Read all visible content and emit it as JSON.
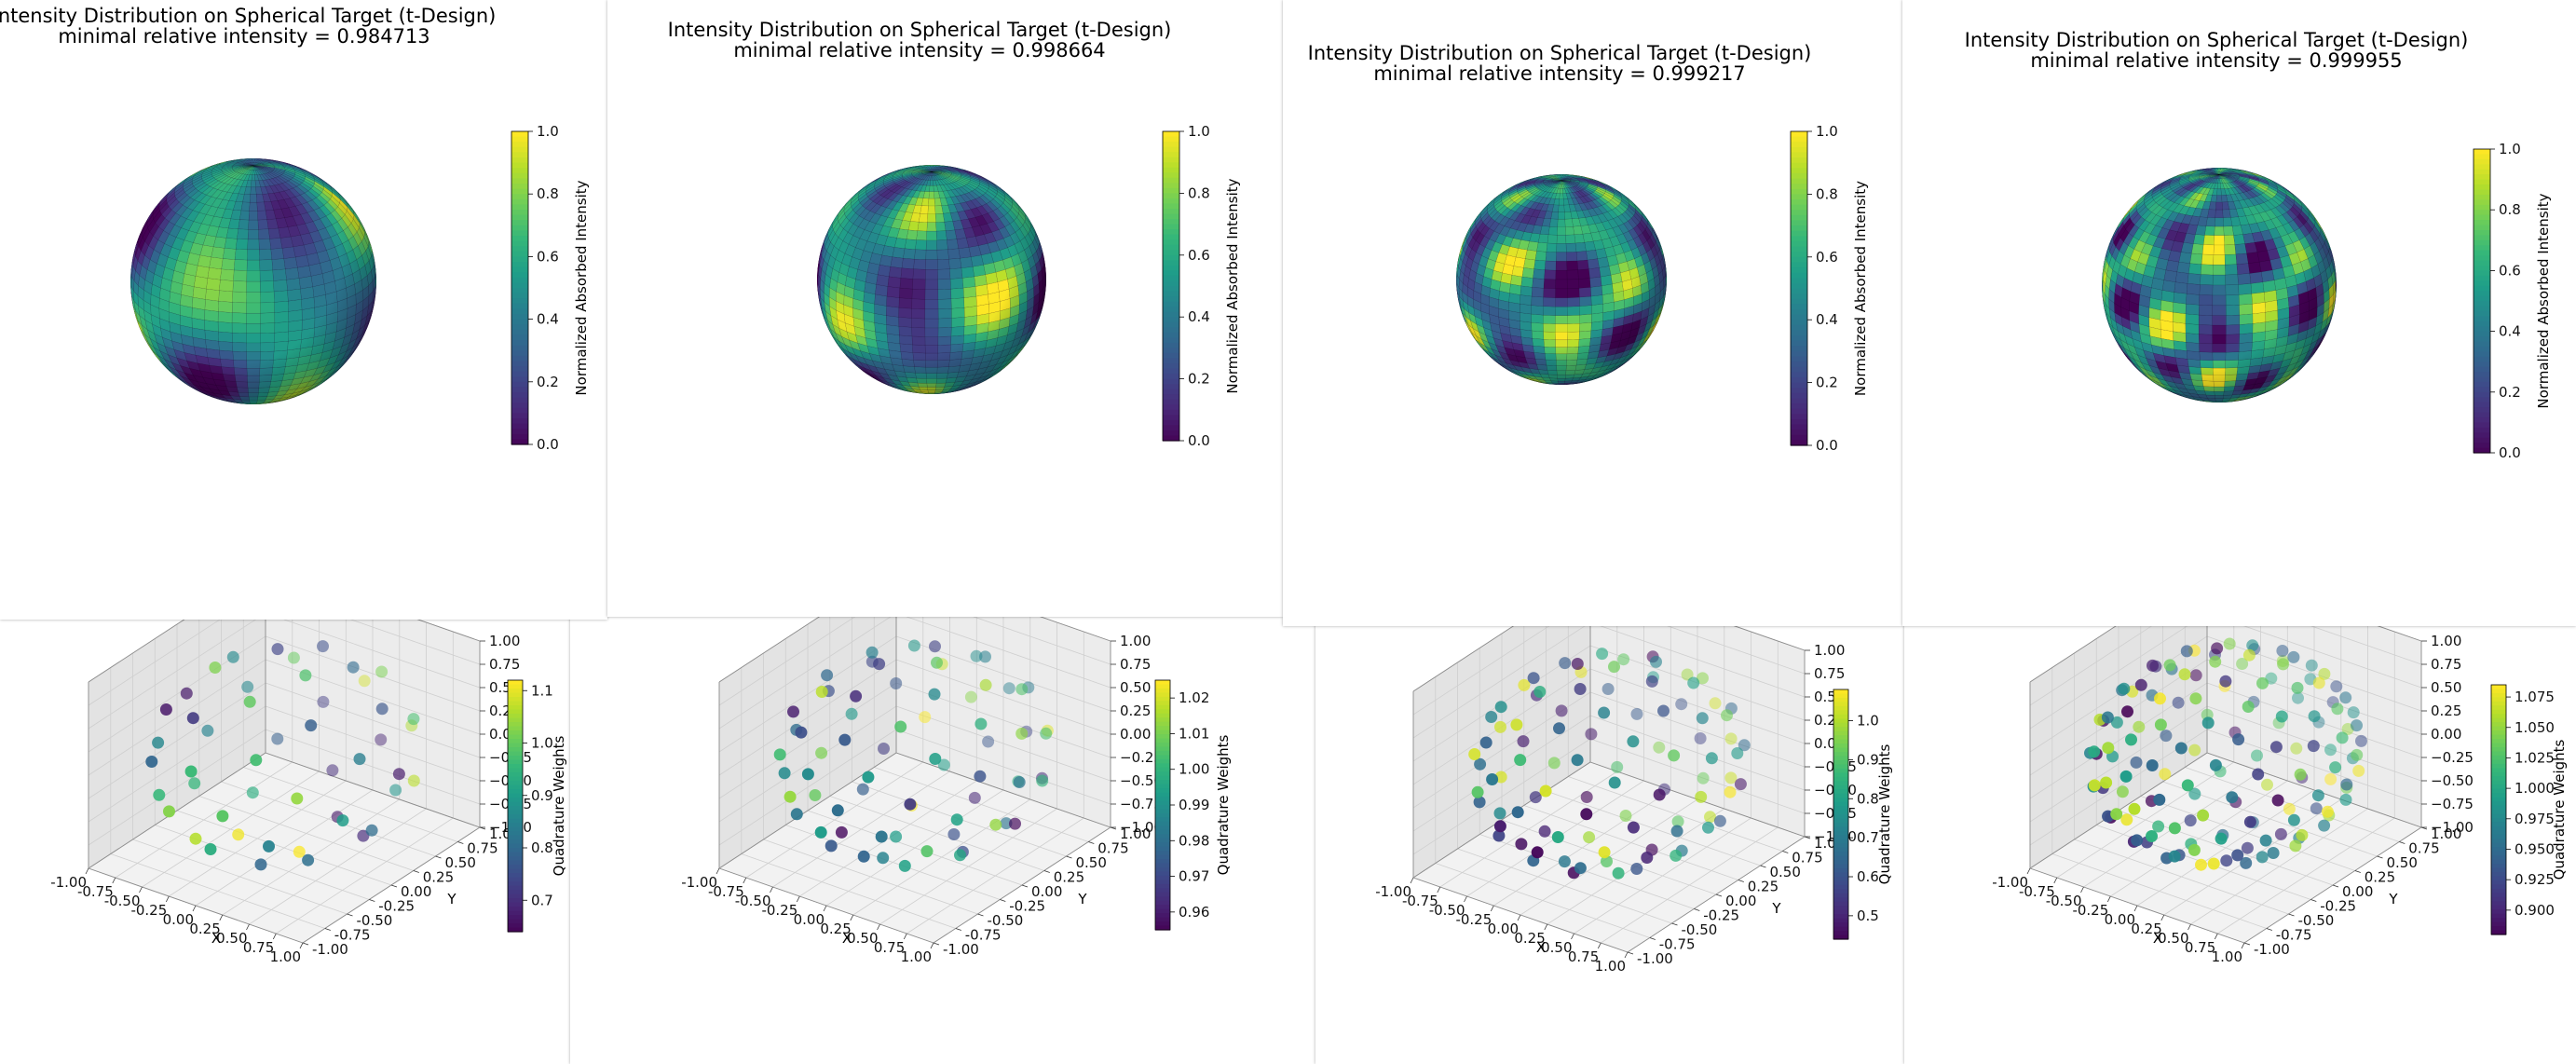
{
  "window_title": "Intensity Distribution on Spherical Target (t-Design)",
  "colors": {
    "viridis": [
      "#440154",
      "#482878",
      "#3e4989",
      "#31688e",
      "#26828e",
      "#1f9e89",
      "#35b779",
      "#6ece58",
      "#b5de2b",
      "#fde725"
    ],
    "pane_face": "#f2f2f2",
    "grid": "#cfcfcf",
    "edge": "#8c8c8c"
  },
  "intensity_plots": [
    {
      "title_line1": "Intensity Distribution on Spherical Target (t-Design)",
      "title_line2": "minimal relative intensity = 0.984713",
      "cbar_label": "Normalized Absorbed Intensity",
      "cbar_ticks": [
        "0.0",
        "0.2",
        "0.4",
        "0.6",
        "0.8",
        "1.0"
      ],
      "min_relative_intensity": 0.984713,
      "pattern": "coarse"
    },
    {
      "title_line1": "Intensity Distribution on Spherical Target (t-Design)",
      "title_line2": "minimal relative intensity = 0.998664",
      "cbar_label": "Normalized Absorbed Intensity",
      "cbar_ticks": [
        "0.0",
        "0.2",
        "0.4",
        "0.6",
        "0.8",
        "1.0"
      ],
      "min_relative_intensity": 0.998664,
      "pattern": "rings"
    },
    {
      "title_line1": "Intensity Distribution on Spherical Target (t-Design)",
      "title_line2": "minimal relative intensity = 0.999217",
      "cbar_label": "Normalized Absorbed Intensity",
      "cbar_ticks": [
        "0.0",
        "0.2",
        "0.4",
        "0.6",
        "0.8",
        "1.0"
      ],
      "min_relative_intensity": 0.999217,
      "pattern": "fine"
    },
    {
      "title_line1": "Intensity Distribution on Spherical Target (t-Design)",
      "title_line2": "minimal relative intensity = 0.999955",
      "cbar_label": "Normalized Absorbed Intensity",
      "cbar_ticks": [
        "0.0",
        "0.2",
        "0.4",
        "0.6",
        "0.8",
        "1.0"
      ],
      "min_relative_intensity": 0.999955,
      "pattern": "finest"
    }
  ],
  "chart_data": [
    {
      "type": "scatter",
      "subtype": "3d",
      "xlabel": "X",
      "ylabel": "Y",
      "zlabel": "",
      "cbar_label": "Quadrature Weights",
      "xticks": [
        "-1.00",
        "-0.75",
        "-0.50",
        "-0.25",
        "0.00",
        "0.25",
        "0.50",
        "0.75",
        "1.00"
      ],
      "yticks": [
        "-1.00",
        "-0.75",
        "-0.50",
        "-0.25",
        "0.00",
        "0.25",
        "0.50",
        "0.75",
        "1.00"
      ],
      "zticks": [
        "-1.00",
        "-0.75",
        "-0.50",
        "-0.25",
        "0.00",
        "0.25",
        "0.50",
        "0.75",
        "1.00"
      ],
      "zticks_shown": [
        "−1.00",
        "−0.75",
        "−0.50",
        "−0.25",
        "0.00",
        "0.25",
        "0.50",
        "0.75",
        "1.00"
      ],
      "cbar_ticks": [
        "0.7",
        "0.8",
        "0.9",
        "1.0",
        "1.1"
      ],
      "cbar_range": [
        0.64,
        1.12
      ],
      "n_points": 48,
      "weight_range": [
        0.64,
        1.12
      ]
    },
    {
      "type": "scatter",
      "subtype": "3d",
      "xlabel": "X",
      "ylabel": "Y",
      "zlabel": "",
      "cbar_label": "Quadrature Weights",
      "xticks": [
        "-1.00",
        "-0.75",
        "-0.50",
        "-0.25",
        "0.00",
        "0.25",
        "0.50",
        "0.75",
        "1.00"
      ],
      "yticks": [
        "-1.00",
        "-0.75",
        "-0.50",
        "-0.25",
        "0.00",
        "0.25",
        "0.50",
        "0.75",
        "1.00"
      ],
      "zticks": [
        "-1.00",
        "-0.75",
        "-0.50",
        "-0.25",
        "0.00",
        "0.25",
        "0.50",
        "0.75",
        "1.00"
      ],
      "zticks_shown": [
        "−1.00",
        "−0.75",
        "−0.50",
        "−0.25",
        "0.00",
        "0.25",
        "0.50",
        "0.75",
        "1.00"
      ],
      "cbar_ticks": [
        "0.96",
        "0.97",
        "0.98",
        "0.99",
        "1.00",
        "1.01",
        "1.02"
      ],
      "cbar_range": [
        0.955,
        1.025
      ],
      "n_points": 70,
      "weight_range": [
        0.955,
        1.025
      ]
    },
    {
      "type": "scatter",
      "subtype": "3d",
      "xlabel": "X",
      "ylabel": "Y",
      "zlabel": "",
      "cbar_label": "Quadrature Weights",
      "xticks": [
        "-1.00",
        "-0.75",
        "-0.50",
        "-0.25",
        "0.00",
        "0.25",
        "0.50",
        "0.75",
        "1.00"
      ],
      "yticks": [
        "-1.00",
        "-0.75",
        "-0.50",
        "-0.25",
        "0.00",
        "0.25",
        "0.50",
        "0.75",
        "1.00"
      ],
      "zticks": [
        "-1.00",
        "-0.75",
        "-0.50",
        "-0.25",
        "0.00",
        "0.25",
        "0.50",
        "0.75",
        "1.00"
      ],
      "zticks_shown": [
        "−1.00",
        "−0.75",
        "−0.50",
        "−0.25",
        "0.00",
        "0.25",
        "0.50",
        "0.75",
        "1.00"
      ],
      "cbar_ticks": [
        "0.5",
        "0.6",
        "0.7",
        "0.8",
        "0.9",
        "1.0"
      ],
      "cbar_range": [
        0.44,
        1.08
      ],
      "n_points": 94,
      "weight_range": [
        0.44,
        1.08
      ]
    },
    {
      "type": "scatter",
      "subtype": "3d",
      "xlabel": "X",
      "ylabel": "Y",
      "zlabel": "",
      "cbar_label": "Quadrature Weights",
      "xticks": [
        "-1.00",
        "-0.75",
        "-0.50",
        "-0.25",
        "0.00",
        "0.25",
        "0.50",
        "0.75",
        "1.00"
      ],
      "yticks": [
        "-1.00",
        "-0.75",
        "-0.50",
        "-0.25",
        "0.00",
        "0.25",
        "0.50",
        "0.75",
        "1.00"
      ],
      "zticks": [
        "-1.00",
        "-0.75",
        "-0.50",
        "-0.25",
        "0.00",
        "0.25",
        "0.50",
        "0.75",
        "1.00"
      ],
      "zticks_shown": [
        "−1.00",
        "−0.75",
        "−0.50",
        "−0.25",
        "0.00",
        "0.25",
        "0.50",
        "0.75",
        "1.00"
      ],
      "cbar_ticks": [
        "0.900",
        "0.925",
        "0.950",
        "0.975",
        "1.000",
        "1.025",
        "1.050",
        "1.075"
      ],
      "cbar_range": [
        0.88,
        1.085
      ],
      "n_points": 150,
      "weight_range": [
        0.88,
        1.085
      ]
    }
  ]
}
